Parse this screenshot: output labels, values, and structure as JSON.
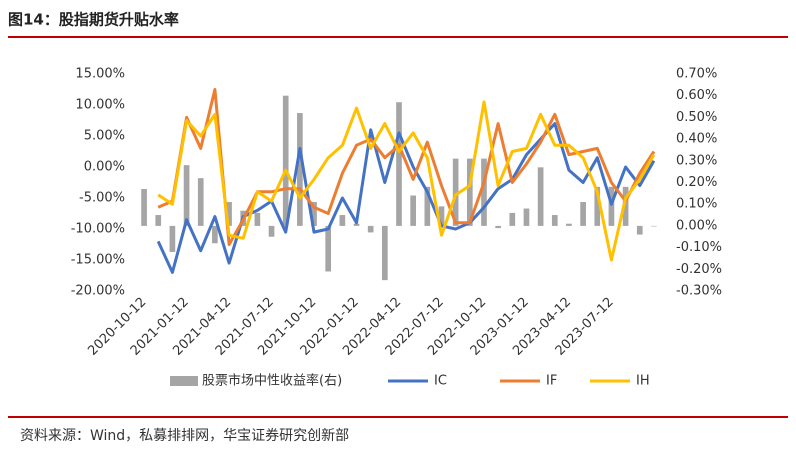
{
  "header": "图14：股指期货升贴水率",
  "source": "资料来源：Wind，私募排排网，华宝证券研究创新部",
  "chart_data": {
    "type": "combo",
    "categories": [
      "2020-10-12",
      null,
      null,
      "2021-01-12",
      null,
      null,
      "2021-04-12",
      null,
      null,
      "2021-07-12",
      null,
      null,
      "2021-10-12",
      null,
      null,
      "2022-01-12",
      null,
      null,
      "2022-04-12",
      null,
      null,
      "2022-07-12",
      null,
      null,
      "2022-10-12",
      null,
      null,
      "2023-01-12",
      null,
      null,
      "2023-04-12",
      null,
      null,
      "2023-07-12",
      null,
      null,
      null
    ],
    "series": [
      {
        "name": "股票市场中性收益率(右)",
        "type": "bar",
        "axis": "y2",
        "color": "#a5a5a5",
        "values": [
          0.17,
          0.05,
          -0.12,
          0.28,
          0.22,
          -0.08,
          0.11,
          0.07,
          0.06,
          -0.05,
          0.6,
          0.52,
          0.11,
          -0.21,
          0.05,
          0.01,
          -0.03,
          -0.25,
          0.57,
          0.14,
          0.18,
          0.09,
          0.31,
          0.31,
          0.31,
          -0.01,
          0.06,
          0.08,
          0.27,
          0.05,
          0.01,
          0.11,
          0.18,
          0.18,
          0.18,
          -0.04,
          0
        ]
      },
      {
        "name": "IC",
        "type": "line",
        "color": "#4472c4",
        "values": [
          null,
          -12,
          -17,
          -8.5,
          -13.5,
          -8,
          -15.5,
          -8,
          -7,
          -5.5,
          -10.5,
          3,
          -10.5,
          -10,
          -5,
          -9,
          6,
          -2.5,
          5.5,
          0,
          -4,
          -9.5,
          -10,
          -9,
          -6.5,
          -3.5,
          -2,
          2,
          4.5,
          7,
          -0.5,
          -2.5,
          1.5,
          -6,
          0,
          -3,
          1
        ]
      },
      {
        "name": "IF",
        "type": "line",
        "color": "#ed7d31",
        "values": [
          null,
          -6.5,
          -5.5,
          8,
          3,
          12.5,
          -12.5,
          -8.5,
          -4,
          -4,
          -3.5,
          -3.5,
          -6.5,
          -7.5,
          -1,
          3.5,
          4.5,
          1.5,
          3.5,
          -2,
          4,
          -3,
          -9,
          -9,
          -2.5,
          7,
          -2.5,
          0.5,
          4,
          8.5,
          2,
          2.5,
          3,
          -2.5,
          -5.5,
          -1,
          2.5
        ]
      },
      {
        "name": "IH",
        "type": "line",
        "color": "#ffc000",
        "values": [
          null,
          -4.5,
          -6,
          7.5,
          5,
          8.5,
          -11,
          -11.5,
          -4,
          -5.5,
          -0.5,
          -5,
          -2,
          1.5,
          3.5,
          9.5,
          3,
          7,
          2.5,
          5.5,
          1.5,
          -11,
          -4.5,
          -3,
          10.5,
          -3,
          2.5,
          3,
          8.5,
          3.5,
          3.5,
          1.5,
          -4,
          -15,
          -5,
          -2,
          2
        ]
      }
    ],
    "ylim": [
      -20,
      15
    ],
    "yticks": [
      {
        "value": -20,
        "label": "-20.00%"
      },
      {
        "value": -15,
        "label": "-15.00%"
      },
      {
        "value": -10,
        "label": "-10.00%"
      },
      {
        "value": -5,
        "label": "-5.00%"
      },
      {
        "value": 0,
        "label": "0.00%"
      },
      {
        "value": 5,
        "label": "5.00%"
      },
      {
        "value": 10,
        "label": "10.00%"
      },
      {
        "value": 15,
        "label": "15.00%"
      }
    ],
    "y2lim": [
      -0.3,
      0.7
    ],
    "y2ticks": [
      {
        "value": -0.3,
        "label": "-0.30%"
      },
      {
        "value": -0.2,
        "label": "-0.20%"
      },
      {
        "value": -0.1,
        "label": "-0.10%"
      },
      {
        "value": 0,
        "label": "0.00%"
      },
      {
        "value": 0.1,
        "label": "0.10%"
      },
      {
        "value": 0.2,
        "label": "0.20%"
      },
      {
        "value": 0.3,
        "label": "0.30%"
      },
      {
        "value": 0.4,
        "label": "0.40%"
      },
      {
        "value": 0.5,
        "label": "0.50%"
      },
      {
        "value": 0.6,
        "label": "0.60%"
      },
      {
        "value": 0.7,
        "label": "0.70%"
      }
    ],
    "legend": "bottom"
  }
}
